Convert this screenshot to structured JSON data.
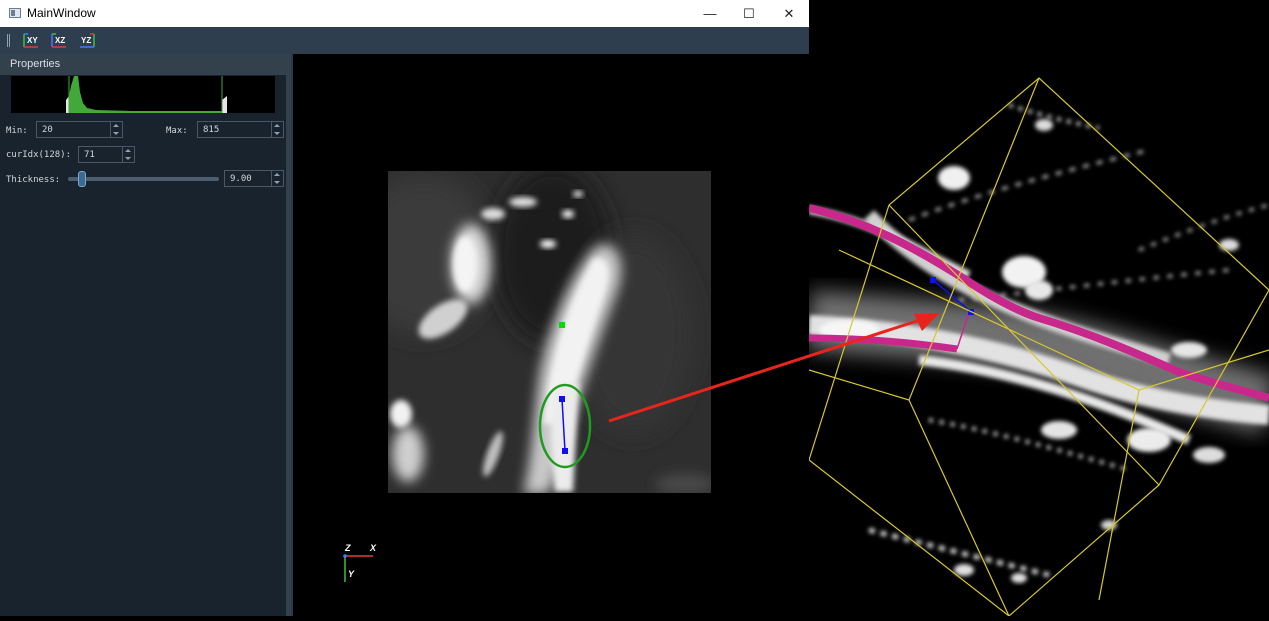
{
  "window": {
    "title": "MainWindow",
    "controls": {
      "minimize": "—",
      "maximize": "☐",
      "close": "✕"
    }
  },
  "toolbar": {
    "buttons": [
      {
        "label": "XY",
        "icon": "xy-plane-icon"
      },
      {
        "label": "XZ",
        "icon": "xz-plane-icon"
      },
      {
        "label": "YZ",
        "icon": "yz-plane-icon"
      }
    ]
  },
  "properties": {
    "title": "Properties",
    "min_label": "Min:",
    "min_value": "20",
    "max_label": "Max:",
    "max_value": "815",
    "curidx_label": "curIdx(128):",
    "curidx_value": "71",
    "thickness_label": "Thickness:",
    "thickness_value": "9.00",
    "thickness_slider_fraction": 0.07
  },
  "viewer2d": {
    "axis_labels": {
      "z": "Z",
      "x": "X",
      "y": "Y"
    }
  },
  "colors": {
    "histogram_fill": "#43a83a",
    "ellipse": "#1f9b1f",
    "marker_blue": "#1010e8",
    "marker_green": "#00e000",
    "arrow": "#e8251c",
    "trace_magenta": "#c8288c",
    "bbox_yellow": "#d7c72e"
  }
}
